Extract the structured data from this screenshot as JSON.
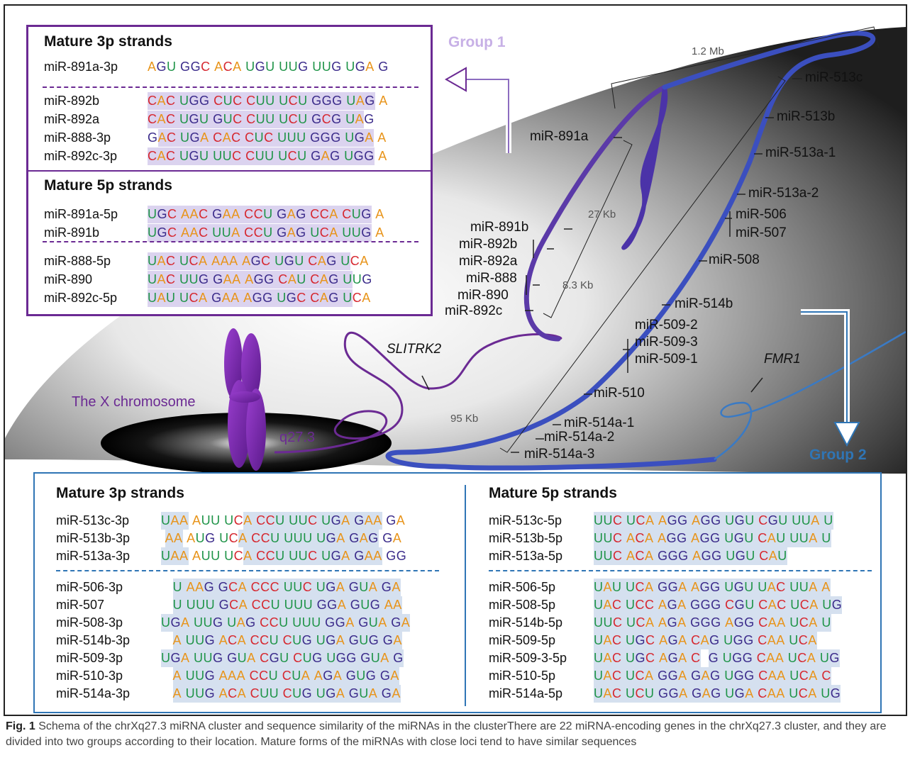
{
  "group_labels": {
    "group1": "Group 1",
    "group2": "Group 2"
  },
  "scale_labels": {
    "total": "1.2 Mb",
    "g1_27kb": "27 Kb",
    "g1_83kb": "8.3 Kb",
    "g2_95kb": "95 Kb"
  },
  "gene_labels": {
    "slitrk2": "SLITRK2",
    "fmr1": "FMR1",
    "x_chromosome": "The X chromosome",
    "band": "q27.3"
  },
  "group1_loci": [
    "miR-891a",
    "miR-891b",
    "miR-892b",
    "miR-892a",
    "miR-888",
    "miR-890",
    "miR-892c"
  ],
  "group2_loci": [
    "miR-513c",
    "miR-513b",
    "miR-513a-1",
    "miR-513a-2",
    "miR-506",
    "miR-507",
    "miR-508",
    "miR-514b",
    "miR-509-2",
    "miR-509-3",
    "miR-509-1",
    "miR-510",
    "miR-514a-1",
    "miR-514a-2",
    "miR-514a-3"
  ],
  "group1_panel": {
    "three_p": {
      "heading": "Mature 3p strands",
      "rows": [
        {
          "name": "miR-891a-3p",
          "seq": "AGU GGC ACA UGU UUG UUG UGA G",
          "hl": "----------------------------"
        },
        {
          "name": "miR-892b",
          "seq": "CAC UGG CUC CUU UCU GGG UAG A",
          "hl": "111111111111111111111111111"
        },
        {
          "name": "miR-892a",
          "seq": "CAC UGU GUC CUU UCU GCG UAG",
          "hl": "11111111111111111111111111"
        },
        {
          "name": "miR-888-3p",
          "seq": "GAC UGA CAC CUC UUU GGG UGA A",
          "hl": "-11111111111111111111111111"
        },
        {
          "name": "miR-892c-3p",
          "seq": "CAC UGU UUC CUU UCU GAG UGG A",
          "hl": "111111111111111111111111111"
        }
      ]
    },
    "five_p": {
      "heading": "Mature 5p strands",
      "rows": [
        {
          "name": "miR-891a-5p",
          "seq": "UGC AAC GAA CCU GAG CCA CUG A",
          "hl": "111111111111111111111111111"
        },
        {
          "name": "miR-891b",
          "seq": "UGC AAC UUA CCU GAG UCA UUG A",
          "hl": "111111111111111111111111111"
        },
        {
          "name": "miR-888-5p",
          "seq": "UAC UCA AAA AGC UGU CAG UCA",
          "hl": "1111111111111111111111111"
        },
        {
          "name": "miR-890",
          "seq": "UAC UUG GAA AGG CAU CAG UUG",
          "hl": "1111111111111111111111111"
        },
        {
          "name": "miR-892c-5p",
          "seq": "UAU UCA GAA AGG UGC CAG UCA",
          "hl": "1111111111111111111111111"
        }
      ]
    }
  },
  "group2_panel": {
    "three_p": {
      "heading": "Mature 3p strands",
      "rows": [
        {
          "name": "miR-513c-3p",
          "seq": "UAA AUU UCA CCU UUC UGA GAA GA",
          "hl": "111-------11111111111111111"
        },
        {
          "name": "miR-513b-3p",
          "seq": " AA AUG UCA CCU UUU UGA GAG GA",
          "hl": "-11-------11111111111111111"
        },
        {
          "name": "miR-513a-3p",
          "seq": "UAA AUU UCA CCU UUC UGA GAA GG",
          "hl": "111-------11111111111111111"
        },
        {
          "name": "miR-506-3p",
          "seq": "   U AAG GCA CCC UUC UGA GUA GA",
          "hl": "------------------------------"
        },
        {
          "name": "miR-507",
          "seq": "   U UUU GCA CCU UUU GGA GUG AA",
          "hl": "------------------------------"
        },
        {
          "name": "miR-508-3p",
          "seq": "UGA UUG UAG CCU UUU GGA GUA GA",
          "hl": "------------------------------"
        },
        {
          "name": "miR-514b-3p",
          "seq": "   A UUG ACA CCU CUG UGA GUG GA",
          "hl": "------------------------------"
        },
        {
          "name": "miR-509-3p",
          "seq": "UGA UUG GUA CGU CUG UGG GUA G",
          "hl": "------------------------------"
        },
        {
          "name": "miR-510-3p",
          "seq": "   A UUG AAA CCU CUA AGA GUG GA",
          "hl": "------------------------------"
        },
        {
          "name": "miR-514a-3p",
          "seq": "   A UUG ACA CUU CUG UGA GUA GA",
          "hl": "------------------------------"
        }
      ]
    },
    "five_p": {
      "heading": "Mature 5p strands",
      "rows": [
        {
          "name": "miR-513c-5p",
          "seq": "UUC UCA AGG AGG UGU CGU UUA U",
          "hl": "------------------------------"
        },
        {
          "name": "miR-513b-5p",
          "seq": "UUC ACA AGG AGG UGU CAU UUA U",
          "hl": "------------------------------"
        },
        {
          "name": "miR-513a-5p",
          "seq": "UUC ACA GGG AGG UGU CAU",
          "hl": "------------------------------"
        },
        {
          "name": "miR-506-5p",
          "seq": "UAU UCA GGA AGG UGU UAC UUA A",
          "hl": "------------------------------"
        },
        {
          "name": "miR-508-5p",
          "seq": "UAC UCC AGA GGG CGU CAC UCA UG",
          "hl": "------------------------------"
        },
        {
          "name": "miR-514b-5p",
          "seq": "UUC UCA AGA GGG AGG CAA UCA U",
          "hl": "------------------------------"
        },
        {
          "name": "miR-509-5p",
          "seq": "UAC UGC AGA CAG UGG CAA UCA",
          "hl": "------------------------------"
        },
        {
          "name": "miR-509-3-5p",
          "seq": "UAC UGC AGA C  G UGG CAA UCA UG",
          "hl": "------------------------------"
        },
        {
          "name": "miR-510-5p",
          "seq": "UAC UCA GGA GAG UGG CAA UCA C",
          "hl": "------------------------------"
        },
        {
          "name": "miR-514a-5p",
          "seq": "UAC UCU GGA GAG UGA CAA UCA UG",
          "hl": "------------------------------"
        }
      ]
    }
  },
  "caption": {
    "label": "Fig. 1",
    "text": " Schema of the chrXq27.3 miRNA cluster and sequence similarity of the miRNAs in the clusterThere are 22 miRNA-encoding genes in the chrXq27.3 cluster, and they are divided into two groups according to their location. Mature forms of the miRNAs with close loci tend to have similar sequences"
  },
  "colors": {
    "group1": "#6b2a93",
    "group2": "#2f75b5",
    "A": "#e8941a",
    "U": "#1f9448",
    "C": "#d6272f",
    "G": "#3a2a8a"
  }
}
